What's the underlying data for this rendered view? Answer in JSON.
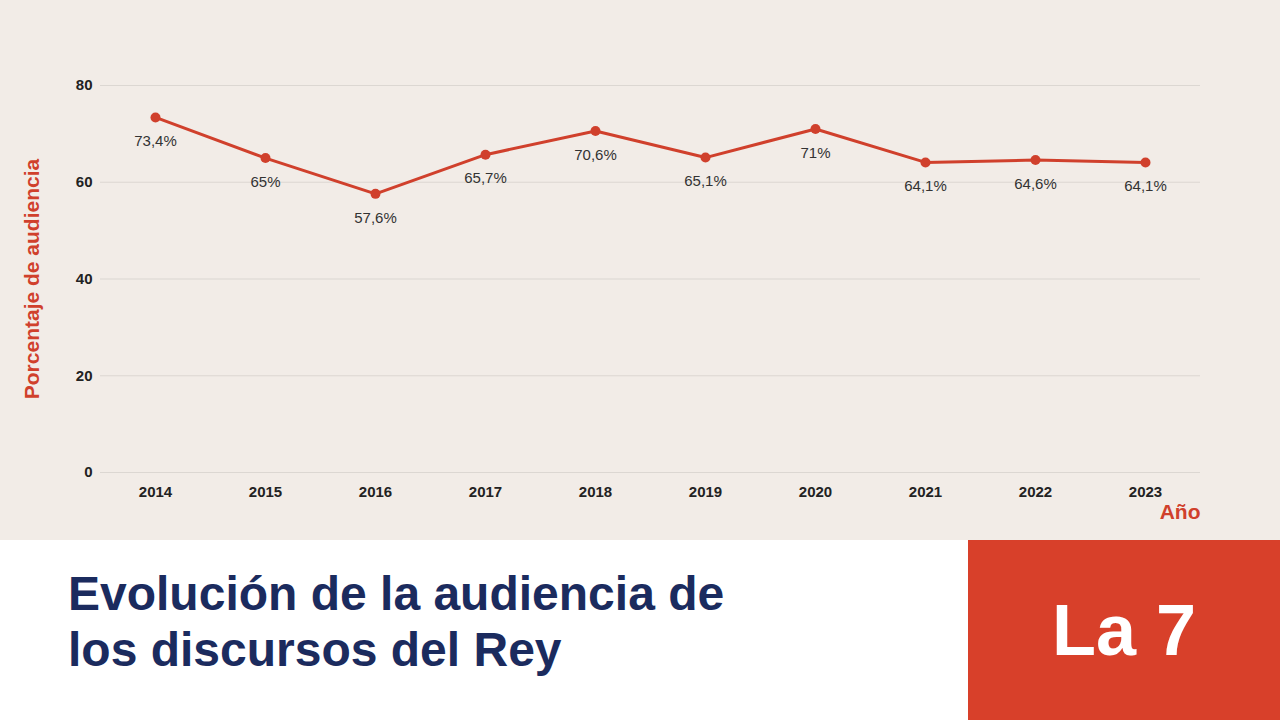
{
  "chart_data": {
    "type": "line",
    "title": "Evolución de la audiencia de los discursos del Rey",
    "logo": "La 7",
    "xlabel": "Año",
    "ylabel": "Porcentaje de audiencia",
    "categories": [
      "2014",
      "2015",
      "2016",
      "2017",
      "2018",
      "2019",
      "2020",
      "2021",
      "2022",
      "2023"
    ],
    "values": [
      73.4,
      65,
      57.6,
      65.7,
      70.6,
      65.1,
      71,
      64.1,
      64.6,
      64.1
    ],
    "value_labels": [
      "73,4%",
      "65%",
      "57,6%",
      "65,7%",
      "70,6%",
      "65,1%",
      "71%",
      "64,1%",
      "64,6%",
      "64,1%"
    ],
    "color": "#d0402c",
    "marker": "circle",
    "ylim": [
      0,
      80
    ],
    "yticks": [
      0,
      20,
      40,
      60,
      80
    ],
    "grid": true,
    "data_labels": true
  }
}
